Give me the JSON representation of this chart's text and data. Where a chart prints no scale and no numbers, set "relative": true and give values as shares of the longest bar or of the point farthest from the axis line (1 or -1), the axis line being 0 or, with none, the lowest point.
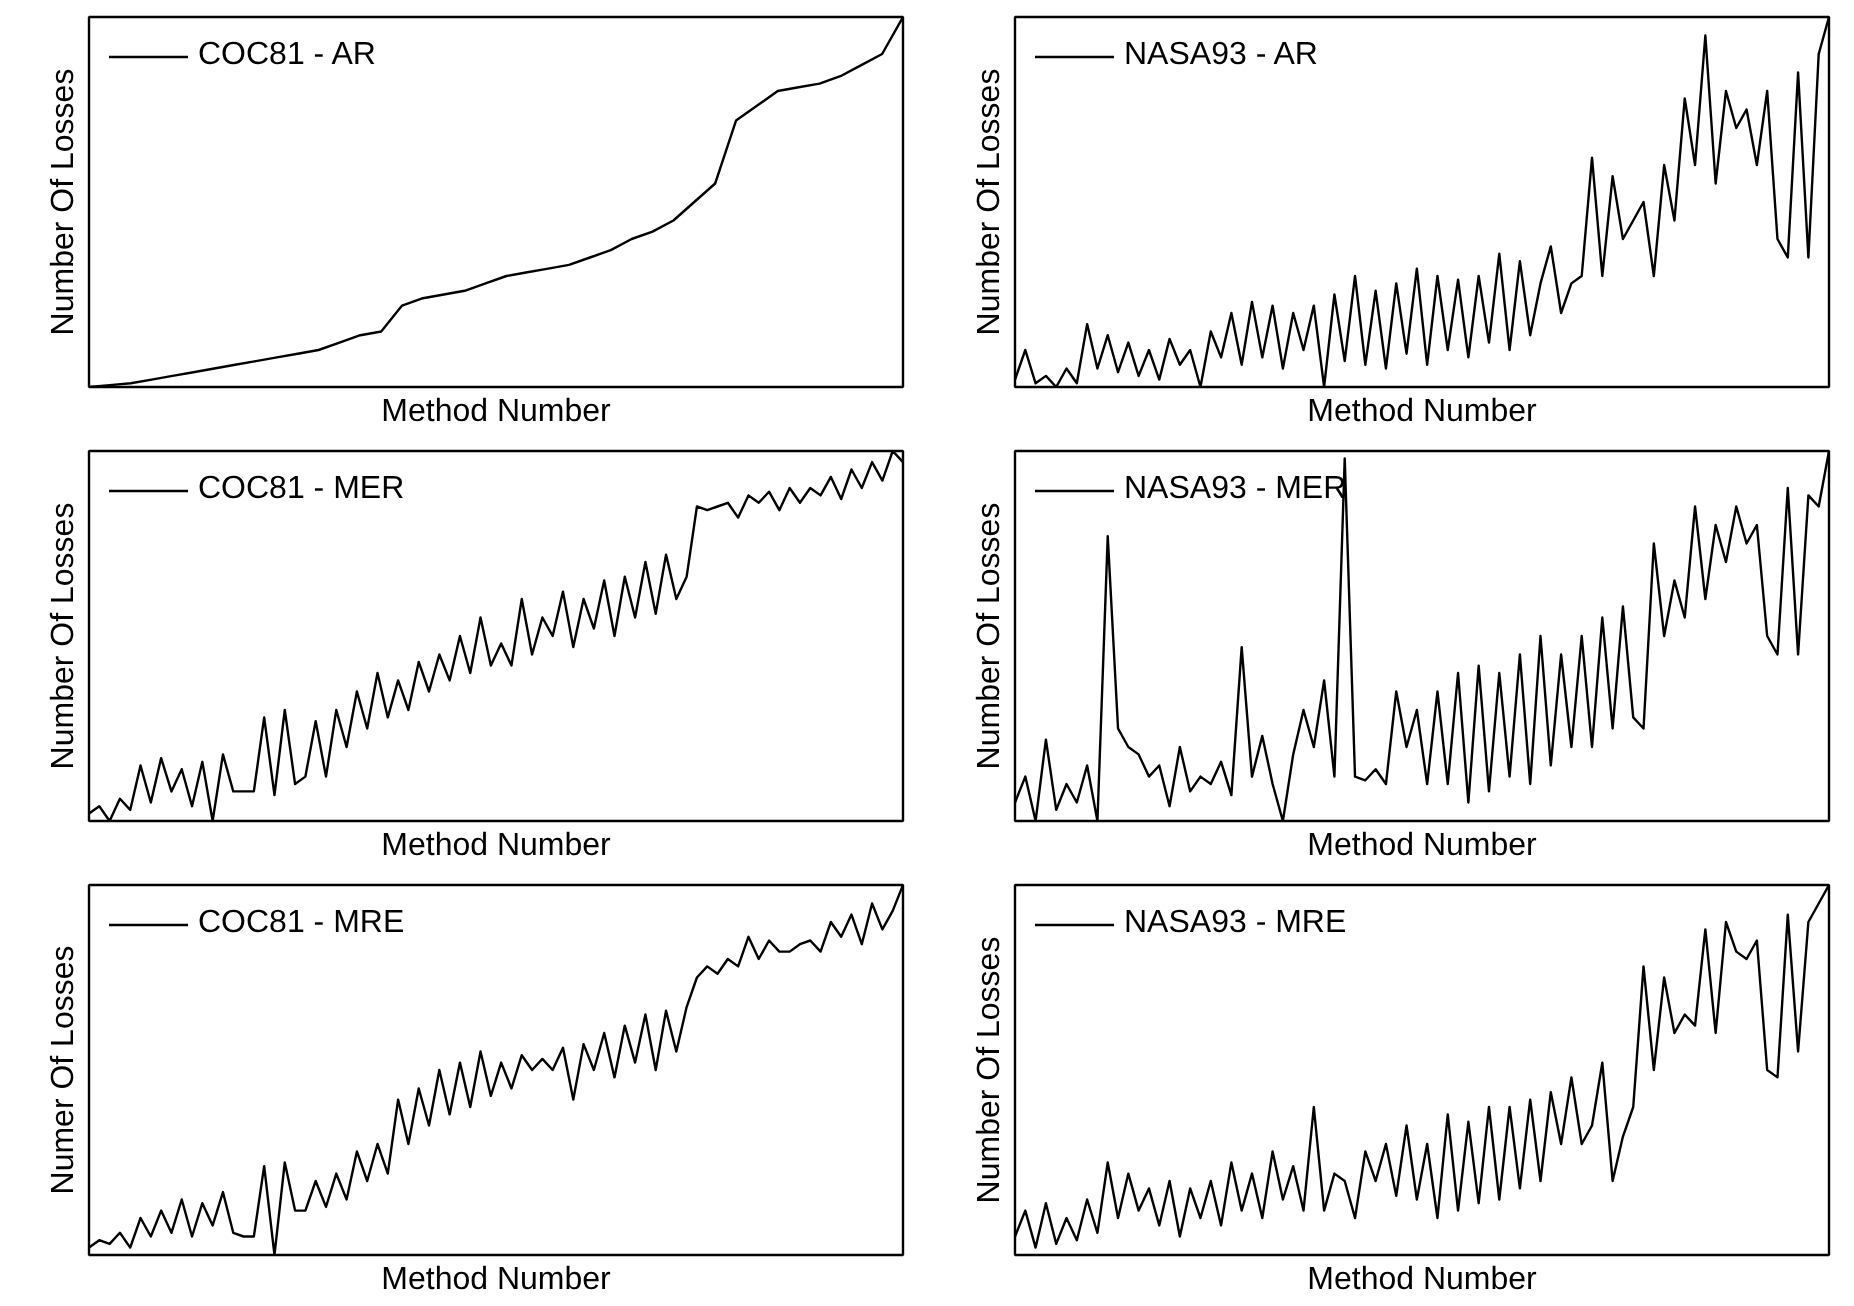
{
  "chart_data": [
    {
      "type": "line",
      "relative": true,
      "xlabel": "Method Number",
      "ylabel": "Number Of Losses",
      "legend": "top left",
      "tick_labels": false,
      "categories": [
        null,
        null,
        null,
        null,
        null,
        null,
        null,
        null,
        null,
        null,
        null,
        null,
        null,
        null,
        null,
        null,
        null,
        null,
        null,
        null,
        null,
        null,
        null,
        null,
        null,
        null,
        null,
        null,
        null,
        null,
        null,
        null,
        null,
        null,
        null,
        null,
        null,
        null,
        null,
        null
      ],
      "series": [
        {
          "name": "COC81 - AR",
          "color": "#000000",
          "values": [
            0,
            0.005,
            0.01,
            0.02,
            0.03,
            0.04,
            0.05,
            0.06,
            0.07,
            0.08,
            0.09,
            0.1,
            0.12,
            0.14,
            0.15,
            0.22,
            0.24,
            0.25,
            0.26,
            0.28,
            0.3,
            0.31,
            0.32,
            0.33,
            0.35,
            0.37,
            0.4,
            0.42,
            0.45,
            0.5,
            0.55,
            0.72,
            0.76,
            0.8,
            0.81,
            0.82,
            0.84,
            0.87,
            0.9,
            1.0
          ]
        }
      ]
    },
    {
      "type": "line",
      "relative": true,
      "xlabel": "Method Number",
      "ylabel": "Number Of Losses",
      "legend": "top left",
      "tick_labels": false,
      "categories": [
        null,
        null,
        null,
        null,
        null,
        null,
        null,
        null,
        null,
        null,
        null,
        null,
        null,
        null,
        null,
        null,
        null,
        null,
        null,
        null,
        null,
        null,
        null,
        null,
        null,
        null,
        null,
        null,
        null,
        null,
        null,
        null,
        null,
        null,
        null,
        null,
        null,
        null,
        null,
        null,
        null,
        null,
        null,
        null,
        null,
        null,
        null,
        null,
        null,
        null,
        null,
        null,
        null,
        null,
        null,
        null,
        null,
        null,
        null,
        null,
        null,
        null,
        null,
        null,
        null,
        null,
        null,
        null,
        null,
        null,
        null,
        null,
        null,
        null,
        null,
        null,
        null,
        null,
        null,
        null
      ],
      "series": [
        {
          "name": "NASA93 - AR",
          "color": "#000000",
          "values": [
            0.02,
            0.1,
            0.01,
            0.03,
            0.0,
            0.05,
            0.01,
            0.17,
            0.05,
            0.14,
            0.04,
            0.12,
            0.03,
            0.1,
            0.02,
            0.13,
            0.06,
            0.1,
            0.0,
            0.15,
            0.08,
            0.2,
            0.06,
            0.23,
            0.08,
            0.22,
            0.05,
            0.2,
            0.1,
            0.22,
            0.0,
            0.25,
            0.07,
            0.3,
            0.06,
            0.26,
            0.05,
            0.28,
            0.09,
            0.32,
            0.06,
            0.3,
            0.1,
            0.29,
            0.08,
            0.3,
            0.12,
            0.36,
            0.1,
            0.34,
            0.14,
            0.28,
            0.38,
            0.2,
            0.28,
            0.3,
            0.62,
            0.3,
            0.57,
            0.4,
            0.45,
            0.5,
            0.3,
            0.6,
            0.45,
            0.78,
            0.6,
            0.95,
            0.55,
            0.8,
            0.7,
            0.75,
            0.6,
            0.8,
            0.4,
            0.35,
            0.85,
            0.35,
            0.9,
            1.0
          ]
        }
      ]
    },
    {
      "type": "line",
      "relative": true,
      "xlabel": "Method Number",
      "ylabel": "Number Of Losses",
      "legend": "top left",
      "tick_labels": false,
      "categories": [
        null,
        null,
        null,
        null,
        null,
        null,
        null,
        null,
        null,
        null,
        null,
        null,
        null,
        null,
        null,
        null,
        null,
        null,
        null,
        null,
        null,
        null,
        null,
        null,
        null,
        null,
        null,
        null,
        null,
        null,
        null,
        null,
        null,
        null,
        null,
        null,
        null,
        null,
        null,
        null,
        null,
        null,
        null,
        null,
        null,
        null,
        null,
        null,
        null,
        null,
        null,
        null,
        null,
        null,
        null,
        null,
        null,
        null,
        null,
        null,
        null,
        null,
        null,
        null,
        null,
        null,
        null,
        null,
        null,
        null,
        null,
        null,
        null,
        null,
        null,
        null,
        null,
        null,
        null,
        null
      ],
      "series": [
        {
          "name": "COC81 - MER",
          "color": "#000000",
          "values": [
            0.02,
            0.04,
            0.0,
            0.06,
            0.03,
            0.15,
            0.05,
            0.17,
            0.08,
            0.14,
            0.04,
            0.16,
            0.0,
            0.18,
            0.08,
            0.08,
            0.08,
            0.28,
            0.07,
            0.3,
            0.1,
            0.12,
            0.27,
            0.12,
            0.3,
            0.2,
            0.35,
            0.25,
            0.4,
            0.28,
            0.38,
            0.3,
            0.43,
            0.35,
            0.45,
            0.38,
            0.5,
            0.4,
            0.55,
            0.42,
            0.48,
            0.42,
            0.6,
            0.45,
            0.55,
            0.5,
            0.62,
            0.47,
            0.6,
            0.52,
            0.65,
            0.5,
            0.66,
            0.55,
            0.7,
            0.56,
            0.72,
            0.6,
            0.66,
            0.85,
            0.84,
            0.85,
            0.86,
            0.82,
            0.88,
            0.86,
            0.89,
            0.84,
            0.9,
            0.86,
            0.9,
            0.88,
            0.93,
            0.87,
            0.95,
            0.9,
            0.97,
            0.92,
            1.0,
            0.97
          ]
        }
      ]
    },
    {
      "type": "line",
      "relative": true,
      "xlabel": "Method Number",
      "ylabel": "Number Of Losses",
      "legend": "top left",
      "tick_labels": false,
      "categories": [
        null,
        null,
        null,
        null,
        null,
        null,
        null,
        null,
        null,
        null,
        null,
        null,
        null,
        null,
        null,
        null,
        null,
        null,
        null,
        null,
        null,
        null,
        null,
        null,
        null,
        null,
        null,
        null,
        null,
        null,
        null,
        null,
        null,
        null,
        null,
        null,
        null,
        null,
        null,
        null,
        null,
        null,
        null,
        null,
        null,
        null,
        null,
        null,
        null,
        null,
        null,
        null,
        null,
        null,
        null,
        null,
        null,
        null,
        null,
        null,
        null,
        null,
        null,
        null,
        null,
        null,
        null,
        null,
        null,
        null,
        null,
        null,
        null,
        null,
        null,
        null,
        null,
        null,
        null,
        null
      ],
      "series": [
        {
          "name": "NASA93 - MER",
          "color": "#000000",
          "values": [
            0.05,
            0.12,
            0.0,
            0.22,
            0.03,
            0.1,
            0.05,
            0.15,
            0.0,
            0.77,
            0.25,
            0.2,
            0.18,
            0.12,
            0.15,
            0.04,
            0.2,
            0.08,
            0.12,
            0.1,
            0.16,
            0.07,
            0.47,
            0.12,
            0.23,
            0.1,
            0.0,
            0.18,
            0.3,
            0.2,
            0.38,
            0.12,
            0.98,
            0.12,
            0.11,
            0.14,
            0.1,
            0.35,
            0.2,
            0.3,
            0.1,
            0.35,
            0.1,
            0.4,
            0.05,
            0.42,
            0.08,
            0.4,
            0.12,
            0.45,
            0.1,
            0.5,
            0.15,
            0.45,
            0.2,
            0.5,
            0.2,
            0.55,
            0.25,
            0.58,
            0.28,
            0.25,
            0.75,
            0.5,
            0.65,
            0.55,
            0.85,
            0.6,
            0.8,
            0.7,
            0.85,
            0.75,
            0.8,
            0.5,
            0.45,
            0.9,
            0.45,
            0.88,
            0.85,
            1.0
          ]
        }
      ]
    },
    {
      "type": "line",
      "relative": true,
      "xlabel": "Method Number",
      "ylabel": "Numer Of Losses",
      "legend": "top left",
      "tick_labels": false,
      "categories": [
        null,
        null,
        null,
        null,
        null,
        null,
        null,
        null,
        null,
        null,
        null,
        null,
        null,
        null,
        null,
        null,
        null,
        null,
        null,
        null,
        null,
        null,
        null,
        null,
        null,
        null,
        null,
        null,
        null,
        null,
        null,
        null,
        null,
        null,
        null,
        null,
        null,
        null,
        null,
        null,
        null,
        null,
        null,
        null,
        null,
        null,
        null,
        null,
        null,
        null,
        null,
        null,
        null,
        null,
        null,
        null,
        null,
        null,
        null,
        null,
        null,
        null,
        null,
        null,
        null,
        null,
        null,
        null,
        null,
        null,
        null,
        null,
        null,
        null,
        null,
        null,
        null,
        null,
        null,
        null
      ],
      "series": [
        {
          "name": "COC81 - MRE",
          "color": "#000000",
          "values": [
            0.02,
            0.04,
            0.03,
            0.06,
            0.02,
            0.1,
            0.05,
            0.12,
            0.06,
            0.15,
            0.05,
            0.14,
            0.08,
            0.17,
            0.06,
            0.05,
            0.05,
            0.24,
            0.0,
            0.25,
            0.12,
            0.12,
            0.2,
            0.13,
            0.22,
            0.15,
            0.28,
            0.2,
            0.3,
            0.22,
            0.42,
            0.3,
            0.45,
            0.35,
            0.5,
            0.38,
            0.52,
            0.4,
            0.55,
            0.43,
            0.52,
            0.45,
            0.54,
            0.5,
            0.53,
            0.5,
            0.56,
            0.42,
            0.57,
            0.5,
            0.6,
            0.48,
            0.62,
            0.52,
            0.65,
            0.5,
            0.66,
            0.55,
            0.67,
            0.75,
            0.78,
            0.76,
            0.8,
            0.78,
            0.86,
            0.8,
            0.85,
            0.82,
            0.82,
            0.84,
            0.85,
            0.82,
            0.9,
            0.86,
            0.92,
            0.84,
            0.95,
            0.88,
            0.93,
            1.0
          ]
        }
      ]
    },
    {
      "type": "line",
      "relative": true,
      "xlabel": "Method Number",
      "ylabel": "Number Of Losses",
      "legend": "top left",
      "tick_labels": false,
      "categories": [
        null,
        null,
        null,
        null,
        null,
        null,
        null,
        null,
        null,
        null,
        null,
        null,
        null,
        null,
        null,
        null,
        null,
        null,
        null,
        null,
        null,
        null,
        null,
        null,
        null,
        null,
        null,
        null,
        null,
        null,
        null,
        null,
        null,
        null,
        null,
        null,
        null,
        null,
        null,
        null,
        null,
        null,
        null,
        null,
        null,
        null,
        null,
        null,
        null,
        null,
        null,
        null,
        null,
        null,
        null,
        null,
        null,
        null,
        null,
        null,
        null,
        null,
        null,
        null,
        null,
        null,
        null,
        null,
        null,
        null,
        null,
        null,
        null,
        null,
        null,
        null,
        null,
        null,
        null,
        null
      ],
      "series": [
        {
          "name": "NASA93 - MRE",
          "color": "#000000",
          "values": [
            0.05,
            0.12,
            0.02,
            0.14,
            0.03,
            0.1,
            0.04,
            0.15,
            0.06,
            0.25,
            0.1,
            0.22,
            0.12,
            0.18,
            0.08,
            0.2,
            0.05,
            0.18,
            0.1,
            0.2,
            0.08,
            0.25,
            0.12,
            0.22,
            0.1,
            0.28,
            0.15,
            0.24,
            0.12,
            0.4,
            0.12,
            0.22,
            0.2,
            0.1,
            0.28,
            0.2,
            0.3,
            0.16,
            0.35,
            0.15,
            0.3,
            0.1,
            0.38,
            0.12,
            0.36,
            0.14,
            0.4,
            0.15,
            0.4,
            0.18,
            0.42,
            0.2,
            0.44,
            0.3,
            0.48,
            0.3,
            0.35,
            0.52,
            0.2,
            0.32,
            0.4,
            0.78,
            0.5,
            0.75,
            0.6,
            0.65,
            0.62,
            0.88,
            0.6,
            0.9,
            0.82,
            0.8,
            0.85,
            0.5,
            0.48,
            0.92,
            0.55,
            0.9,
            0.95,
            1.0
          ]
        }
      ]
    }
  ]
}
